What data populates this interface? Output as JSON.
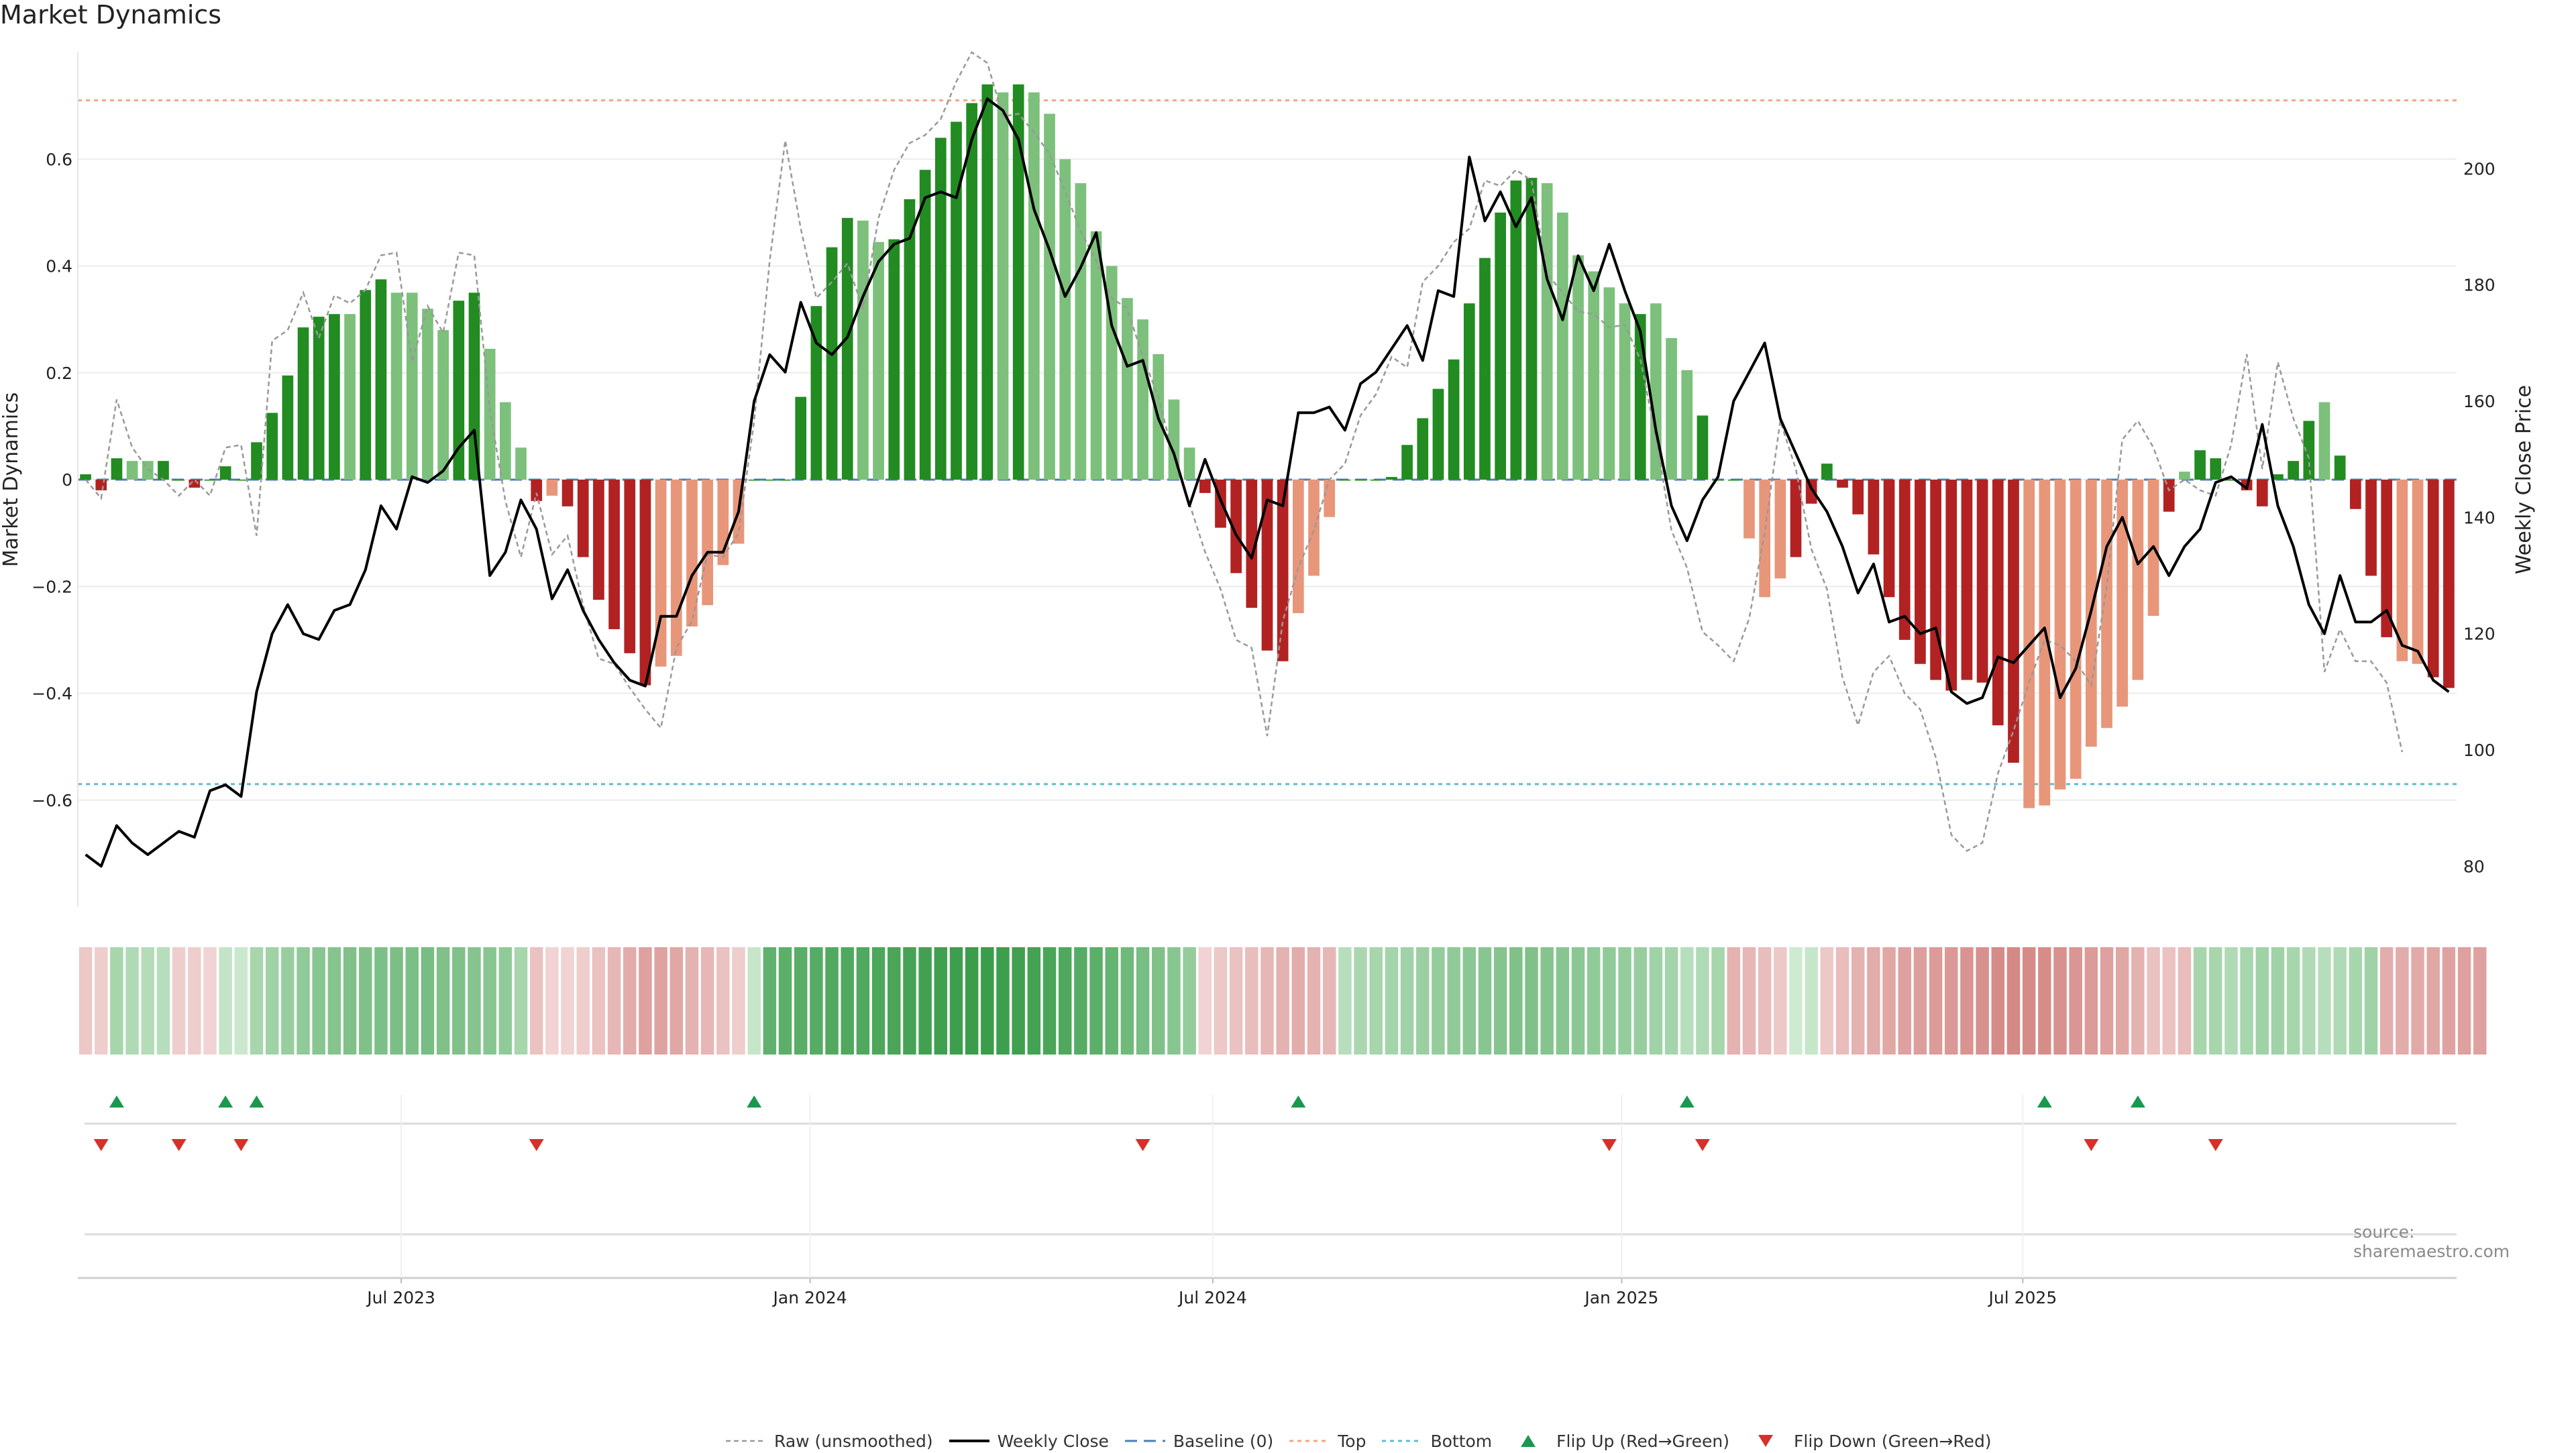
{
  "title": "Market Dynamics",
  "source": "source: sharemaestro.com",
  "colors": {
    "bar_green_dark": "#228b22",
    "bar_green_light": "#7cc07c",
    "bar_red_dark": "#b22222",
    "bar_red_light": "#e8967a",
    "close_line": "#000000",
    "raw_line": "#999999",
    "baseline": "#4a7fb5",
    "top": "#f4a582",
    "bottom": "#5fbcd3",
    "flip_up": "#1a9850",
    "flip_down": "#d73027"
  },
  "legend": [
    {
      "label": "Raw (unsmoothed)",
      "style": "raw"
    },
    {
      "label": "Weekly Close",
      "style": "close"
    },
    {
      "label": "Baseline (0)",
      "style": "baseline"
    },
    {
      "label": "Top",
      "style": "top"
    },
    {
      "label": "Bottom",
      "style": "bottom"
    },
    {
      "label": "Flip Up (Red→Green)",
      "style": "up"
    },
    {
      "label": "Flip Down (Green→Red)",
      "style": "down"
    }
  ],
  "chart_data": {
    "type": "bar",
    "ylabel": "Market Dynamics",
    "y2label": "Weekly Close Price",
    "ylim": [
      -0.8,
      0.8
    ],
    "y2lim": [
      73,
      220
    ],
    "yticks": [
      "0.6",
      "0.4",
      "0.2",
      "0",
      "−0.2",
      "−0.4",
      "−0.6"
    ],
    "yticks_values": [
      0.6,
      0.4,
      0.2,
      0,
      -0.2,
      -0.4,
      -0.6
    ],
    "y2ticks": [
      "200",
      "180",
      "160",
      "140",
      "120",
      "100",
      "80"
    ],
    "y2ticks_values": [
      200,
      180,
      160,
      140,
      120,
      100,
      80
    ],
    "xticks": [
      {
        "label": "Jul 2023",
        "week": 20.3
      },
      {
        "label": "Jan 2024",
        "week": 46.6
      },
      {
        "label": "Jul 2024",
        "week": 72.5
      },
      {
        "label": "Jan 2025",
        "week": 98.8
      },
      {
        "label": "Jul 2025",
        "week": 124.6
      }
    ],
    "top_level": 0.71,
    "bottom_level": -0.57,
    "grid": true,
    "legend_position": "bottom",
    "dynamics": [
      0.01,
      -0.02,
      0.04,
      0.035,
      0.035,
      0.035,
      0.0,
      -0.015,
      0.0,
      0.025,
      0.0,
      0.07,
      0.125,
      0.195,
      0.285,
      0.305,
      0.31,
      0.31,
      0.355,
      0.375,
      0.35,
      0.35,
      0.32,
      0.28,
      0.335,
      0.35,
      0.245,
      0.145,
      0.06,
      -0.04,
      -0.03,
      -0.05,
      -0.145,
      -0.225,
      -0.28,
      -0.325,
      -0.385,
      -0.35,
      -0.33,
      -0.275,
      -0.235,
      -0.16,
      -0.12,
      0.0,
      0.0,
      0.0,
      0.155,
      0.325,
      0.435,
      0.49,
      0.485,
      0.445,
      0.45,
      0.525,
      0.58,
      0.64,
      0.67,
      0.705,
      0.74,
      0.725,
      0.74,
      0.725,
      0.685,
      0.6,
      0.555,
      0.465,
      0.4,
      0.34,
      0.3,
      0.235,
      0.15,
      0.06,
      -0.025,
      -0.09,
      -0.175,
      -0.24,
      -0.32,
      -0.34,
      -0.25,
      -0.18,
      -0.07,
      0.0,
      0.0,
      0.0,
      0.005,
      0.065,
      0.115,
      0.17,
      0.225,
      0.33,
      0.415,
      0.5,
      0.56,
      0.565,
      0.555,
      0.5,
      0.42,
      0.39,
      0.36,
      0.33,
      0.31,
      0.33,
      0.265,
      0.205,
      0.12,
      0.0,
      0.0,
      -0.11,
      -0.22,
      -0.185,
      -0.145,
      -0.045,
      0.03,
      -0.015,
      -0.065,
      -0.14,
      -0.22,
      -0.3,
      -0.345,
      -0.375,
      -0.395,
      -0.375,
      -0.38,
      -0.46,
      -0.53,
      -0.615,
      -0.61,
      -0.58,
      -0.56,
      -0.5,
      -0.465,
      -0.425,
      -0.375,
      -0.255,
      -0.06,
      0.015,
      0.055,
      0.04,
      0.0,
      -0.02,
      -0.05,
      0.01,
      0.035,
      0.11,
      0.145,
      0.045,
      -0.055,
      -0.18,
      -0.295,
      -0.34,
      -0.345,
      -0.37,
      -0.39
    ],
    "dynamics_shade": [
      "d",
      "d",
      "d",
      "l",
      "l",
      "d",
      "d",
      "d",
      "d",
      "d",
      "d",
      "d",
      "d",
      "d",
      "d",
      "d",
      "d",
      "l",
      "d",
      "d",
      "l",
      "l",
      "l",
      "l",
      "d",
      "d",
      "l",
      "l",
      "l",
      "d",
      "l",
      "d",
      "d",
      "d",
      "d",
      "d",
      "d",
      "l",
      "l",
      "l",
      "l",
      "l",
      "l",
      "d",
      "d",
      "d",
      "d",
      "d",
      "d",
      "d",
      "l",
      "l",
      "d",
      "d",
      "d",
      "d",
      "d",
      "d",
      "d",
      "l",
      "d",
      "l",
      "l",
      "l",
      "l",
      "l",
      "l",
      "l",
      "l",
      "l",
      "l",
      "l",
      "d",
      "d",
      "d",
      "d",
      "d",
      "d",
      "l",
      "l",
      "l",
      "d",
      "d",
      "d",
      "d",
      "d",
      "d",
      "d",
      "d",
      "d",
      "d",
      "d",
      "d",
      "d",
      "l",
      "l",
      "l",
      "l",
      "l",
      "l",
      "d",
      "l",
      "l",
      "l",
      "d",
      "d",
      "d",
      "l",
      "l",
      "l",
      "d",
      "d",
      "d",
      "d",
      "d",
      "d",
      "d",
      "d",
      "d",
      "d",
      "d",
      "d",
      "d",
      "d",
      "d",
      "l",
      "l",
      "l",
      "l",
      "l",
      "l",
      "l",
      "l",
      "l",
      "d",
      "l",
      "d",
      "d",
      "d",
      "d",
      "d",
      "d",
      "d",
      "d",
      "l",
      "d",
      "d",
      "d",
      "d",
      "l",
      "l",
      "d"
    ],
    "raw": [
      0.0,
      -0.035,
      0.15,
      0.06,
      0.02,
      0.0,
      -0.03,
      0.0,
      -0.03,
      0.06,
      0.065,
      -0.105,
      0.26,
      0.28,
      0.35,
      0.265,
      0.345,
      0.33,
      0.355,
      0.42,
      0.425,
      0.22,
      0.325,
      0.275,
      0.425,
      0.42,
      0.13,
      -0.04,
      -0.145,
      -0.025,
      -0.14,
      -0.105,
      -0.235,
      -0.335,
      -0.345,
      -0.39,
      -0.43,
      -0.465,
      -0.315,
      -0.265,
      -0.14,
      -0.145,
      -0.1,
      0.11,
      0.41,
      0.635,
      0.47,
      0.34,
      0.37,
      0.405,
      0.32,
      0.49,
      0.58,
      0.63,
      0.645,
      0.675,
      0.745,
      0.8,
      0.78,
      0.68,
      0.685,
      0.65,
      0.61,
      0.54,
      0.465,
      0.41,
      0.34,
      0.32,
      0.23,
      0.155,
      0.04,
      -0.045,
      -0.135,
      -0.205,
      -0.3,
      -0.315,
      -0.48,
      -0.265,
      -0.165,
      -0.095,
      0.0,
      0.03,
      0.12,
      0.16,
      0.23,
      0.21,
      0.37,
      0.4,
      0.445,
      0.47,
      0.56,
      0.55,
      0.58,
      0.56,
      0.385,
      0.35,
      0.315,
      0.31,
      0.285,
      0.29,
      0.225,
      0.08,
      -0.095,
      -0.165,
      -0.285,
      -0.31,
      -0.34,
      -0.26,
      -0.1,
      0.11,
      0.02,
      -0.13,
      -0.205,
      -0.37,
      -0.46,
      -0.36,
      -0.33,
      -0.4,
      -0.43,
      -0.52,
      -0.665,
      -0.695,
      -0.68,
      -0.55,
      -0.47,
      -0.38,
      -0.3,
      -0.31,
      -0.34,
      -0.385,
      -0.2,
      0.075,
      0.11,
      0.06,
      -0.02,
      0.0,
      -0.02,
      -0.03,
      0.065,
      0.235,
      0.02,
      0.22,
      0.115,
      0.04,
      -0.36,
      -0.28,
      -0.34,
      -0.34,
      -0.38,
      -0.51
    ],
    "close": [
      82,
      80,
      87,
      84,
      82,
      84,
      86,
      85,
      93,
      94,
      92,
      110,
      120,
      125,
      120,
      119,
      124,
      125,
      131,
      142,
      138,
      147,
      146,
      148,
      152,
      155,
      130,
      134,
      143,
      138,
      126,
      131,
      124,
      119,
      115,
      112,
      111,
      123,
      123,
      130,
      134,
      134,
      141,
      160,
      168,
      165,
      177,
      170,
      168,
      171,
      178,
      184,
      187,
      188,
      195,
      196,
      195,
      205,
      212,
      210,
      205,
      193,
      186,
      178,
      183,
      189,
      173,
      166,
      167,
      157,
      151,
      142,
      150,
      143,
      137,
      133,
      143,
      142,
      158,
      158,
      159,
      155,
      163,
      165,
      169,
      173,
      167,
      179,
      178,
      202,
      191,
      196,
      190,
      195,
      181,
      174,
      185,
      179,
      187,
      179,
      172,
      155,
      142,
      136,
      143,
      147,
      160,
      165,
      170,
      157,
      151,
      145,
      141,
      135,
      127,
      132,
      122,
      123,
      120,
      121,
      110,
      108,
      109,
      116,
      115,
      118,
      121,
      109,
      114,
      124,
      135,
      140,
      132,
      135,
      130,
      135,
      138,
      146,
      147,
      145,
      156,
      142,
      135,
      125,
      120,
      130,
      122,
      122,
      124,
      118,
      117,
      112,
      110
    ],
    "heat": [
      0.15,
      0.1,
      0.3,
      0.25,
      0.22,
      0.2,
      0.1,
      0.1,
      0.05,
      0.12,
      0.08,
      0.3,
      0.35,
      0.4,
      0.45,
      0.5,
      0.52,
      0.55,
      0.55,
      0.57,
      0.58,
      0.58,
      0.6,
      0.55,
      0.55,
      0.52,
      0.5,
      0.45,
      0.3,
      0.2,
      0.05,
      0.05,
      0.1,
      0.2,
      0.3,
      0.4,
      0.5,
      0.48,
      0.45,
      0.35,
      0.3,
      0.2,
      0.1,
      0.1,
      0.75,
      0.78,
      0.8,
      0.82,
      0.85,
      0.86,
      0.86,
      0.88,
      0.9,
      0.92,
      0.95,
      0.96,
      0.98,
      1.0,
      1.0,
      0.98,
      0.96,
      0.94,
      0.9,
      0.86,
      0.82,
      0.78,
      0.72,
      0.66,
      0.6,
      0.55,
      0.5,
      0.42,
      0.05,
      0.15,
      0.2,
      0.25,
      0.3,
      0.35,
      0.4,
      0.35,
      0.3,
      0.2,
      0.28,
      0.3,
      0.32,
      0.35,
      0.38,
      0.42,
      0.45,
      0.48,
      0.5,
      0.52,
      0.55,
      0.55,
      0.52,
      0.5,
      0.48,
      0.45,
      0.45,
      0.42,
      0.4,
      0.35,
      0.32,
      0.2,
      0.25,
      0.3,
      0.35,
      0.3,
      0.25,
      0.15,
      0.05,
      0.1,
      0.15,
      0.25,
      0.35,
      0.4,
      0.45,
      0.5,
      0.52,
      0.55,
      0.58,
      0.62,
      0.65,
      0.7,
      0.72,
      0.7,
      0.68,
      0.65,
      0.6,
      0.55,
      0.5,
      0.45,
      0.35,
      0.2,
      0.2,
      0.25,
      0.3,
      0.3,
      0.25,
      0.3,
      0.35,
      0.35,
      0.3,
      0.25,
      0.2,
      0.25,
      0.3,
      0.35,
      0.38,
      0.4,
      0.42,
      0.45,
      0.48,
      0.5,
      0.5
    ],
    "heat_sign": [
      -1,
      -1,
      1,
      1,
      1,
      1,
      -1,
      -1,
      -1,
      1,
      1,
      1,
      1,
      1,
      1,
      1,
      1,
      1,
      1,
      1,
      1,
      1,
      1,
      1,
      1,
      1,
      1,
      1,
      1,
      -1,
      -1,
      -1,
      -1,
      -1,
      -1,
      -1,
      -1,
      -1,
      -1,
      -1,
      -1,
      -1,
      -1,
      1,
      1,
      1,
      1,
      1,
      1,
      1,
      1,
      1,
      1,
      1,
      1,
      1,
      1,
      1,
      1,
      1,
      1,
      1,
      1,
      1,
      1,
      1,
      1,
      1,
      1,
      1,
      1,
      1,
      -1,
      -1,
      -1,
      -1,
      -1,
      -1,
      -1,
      -1,
      -1,
      1,
      1,
      1,
      1,
      1,
      1,
      1,
      1,
      1,
      1,
      1,
      1,
      1,
      1,
      1,
      1,
      1,
      1,
      1,
      1,
      1,
      1,
      1,
      1,
      1,
      -1,
      -1,
      -1,
      -1,
      1,
      1,
      -1,
      -1,
      -1,
      -1,
      -1,
      -1,
      -1,
      -1,
      -1,
      -1,
      -1,
      -1,
      -1,
      -1,
      -1,
      -1,
      -1,
      -1,
      -1,
      -1,
      -1,
      -1,
      -1,
      -1,
      1,
      1,
      1,
      1,
      1,
      1,
      1,
      1,
      1,
      1,
      1,
      1,
      -1,
      -1,
      -1,
      -1,
      -1,
      -1,
      -1,
      -1
    ],
    "flip_up_weeks": [
      2,
      9,
      11,
      43,
      78,
      103,
      126,
      132
    ],
    "flip_down_weeks": [
      1,
      6,
      10,
      29,
      68,
      98,
      104,
      129,
      137
    ]
  }
}
